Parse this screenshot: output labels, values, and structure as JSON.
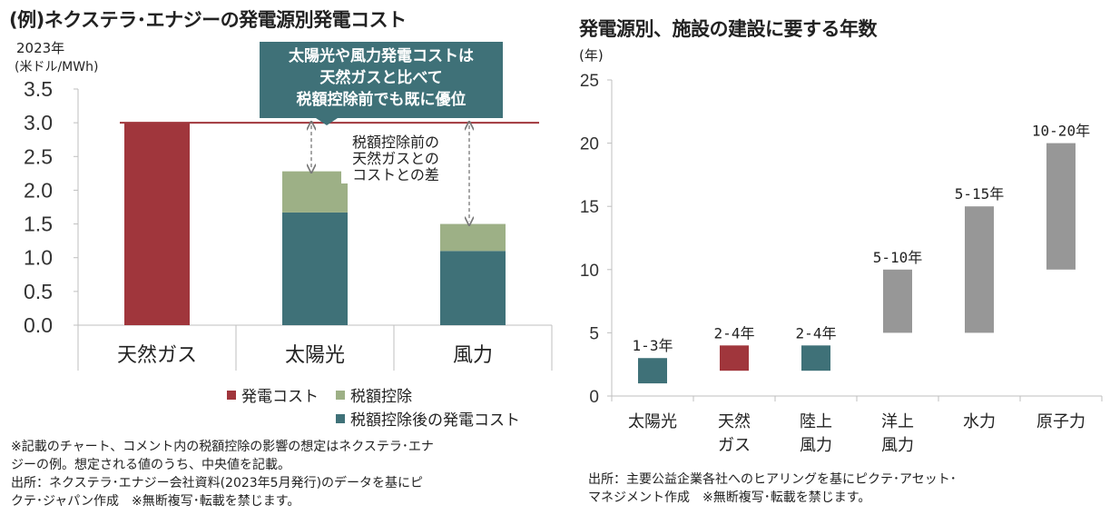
{
  "left_chart": {
    "title": "(例)ネクステラ･エナジーの発電源別発電コスト",
    "unit_line1": "2023年",
    "unit_line2": "(米ドル/MWh)",
    "callout_lines": [
      "太陽光や風力発電コストは",
      "天然ガスと比べて",
      "税額控除前でも既に優位"
    ],
    "diff_label_lines": [
      "税額控除前の",
      "天然ガスとの",
      "コストとの差"
    ],
    "legend": {
      "power_cost": "発電コスト",
      "tax_credit": "税額控除",
      "after_credit": "税額控除後の発電コスト"
    },
    "note_lines": [
      "※記載のチャート、コメント内の税額控除の影響の想定はネクステラ･エナ",
      "ジーの例。想定される値のうち、中央値を記載。",
      "出所：ネクステラ･エナジー会社資料(2023年5月発行)のデータを基にピ",
      "クテ･ジャパン作成　※無断複写･転載を禁じます。"
    ],
    "colors": {
      "power_cost": "#a0363c",
      "tax_credit": "#9db086",
      "after_credit": "#3f7178",
      "ref_line": "#a0363c"
    }
  },
  "right_chart": {
    "title": "発電源別、施設の建設に要する年数",
    "unit": "(年)",
    "note_lines": [
      "出所：主要公益企業各社へのヒアリングを基にピクテ･アセット･",
      "マネジメント作成　※無断複写･転載を禁じます。"
    ],
    "colors": {
      "teal": "#3f7178",
      "red": "#a0363c",
      "gray": "#979797"
    }
  },
  "chart_data": [
    {
      "type": "bar",
      "title": "(例)ネクステラ･エナジーの発電源別発電コスト",
      "ylabel": "(米ドル/MWh)",
      "ylim": [
        0,
        3.5
      ],
      "yticks": [
        "0.0",
        "0.5",
        "1.0",
        "1.5",
        "2.0",
        "2.5",
        "3.0",
        "3.5"
      ],
      "categories": [
        "天然ガス",
        "太陽光",
        "風力"
      ],
      "stacked": true,
      "series": [
        {
          "name": "発電コスト",
          "values": [
            3.0,
            0,
            0
          ]
        },
        {
          "name": "税額控除後の発電コスト",
          "values": [
            0,
            1.67,
            1.1
          ]
        },
        {
          "name": "税額控除",
          "values": [
            0,
            0.61,
            0.4
          ]
        }
      ],
      "reference_line": 3.0,
      "legend_position": "bottom-right",
      "grid": false
    },
    {
      "type": "bar",
      "title": "発電源別、施設の建設に要する年数",
      "ylabel": "(年)",
      "ylim": [
        0,
        25
      ],
      "yticks": [
        "0",
        "5",
        "10",
        "15",
        "20",
        "25"
      ],
      "categories": [
        [
          "太陽光"
        ],
        [
          "天然",
          "ガス"
        ],
        [
          "陸上",
          "風力"
        ],
        [
          "洋上",
          "風力"
        ],
        [
          "水力"
        ],
        [
          "原子力"
        ]
      ],
      "ranges": [
        [
          1,
          3
        ],
        [
          2,
          4
        ],
        [
          2,
          4
        ],
        [
          5,
          10
        ],
        [
          5,
          15
        ],
        [
          10,
          20
        ]
      ],
      "range_labels": [
        "1-3年",
        "2-4年",
        "2-4年",
        "5-10年",
        "5-15年",
        "10-20年"
      ],
      "bar_colors": [
        "teal",
        "red",
        "teal",
        "gray",
        "gray",
        "gray"
      ],
      "grid": false
    }
  ]
}
